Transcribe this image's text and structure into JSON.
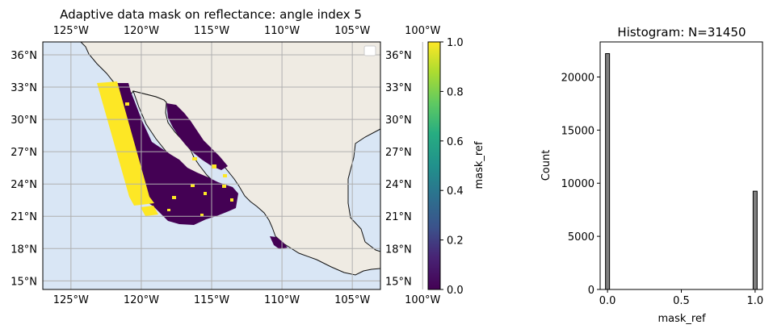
{
  "chart_data": [
    {
      "type": "heatmap",
      "title": "Adaptive data mask on reflectance: angle index 5",
      "projection": "PlateCarree map",
      "xlim": [
        -127,
        -103
      ],
      "ylim": [
        14.2,
        37.2
      ],
      "x_ticks": [
        -125,
        -120,
        -115,
        -110,
        -105,
        -100
      ],
      "x_tick_labels": [
        "125°W",
        "120°W",
        "115°W",
        "110°W",
        "105°W",
        "100°W"
      ],
      "y_ticks": [
        15,
        18,
        21,
        24,
        27,
        30,
        33,
        36
      ],
      "y_tick_labels": [
        "15°N",
        "18°N",
        "21°N",
        "24°N",
        "27°N",
        "30°N",
        "33°N",
        "36°N"
      ],
      "grid": true,
      "legend": "top-right (empty)",
      "colors": {
        "ocean": "#d9e6f5",
        "land": "#efebe3",
        "coast": "#111111",
        "mask_low": "#440154",
        "mask_high": "#fde725"
      },
      "colorbar": {
        "label": "mask_ref",
        "colormap": "viridis",
        "vmin": 0.0,
        "vmax": 1.0,
        "ticks": [
          0.0,
          0.2,
          0.4,
          0.6,
          0.8,
          1.0
        ],
        "tick_labels": [
          "0.0",
          "0.2",
          "0.4",
          "0.6",
          "0.8",
          "1.0"
        ]
      },
      "mask_values": [
        0,
        1
      ]
    },
    {
      "type": "bar",
      "title": "Histogram: N=31450",
      "xlabel": "mask_ref",
      "ylabel": "Count",
      "xlim": [
        -0.05,
        1.05
      ],
      "ylim": [
        0,
        23300
      ],
      "x_ticks": [
        0.0,
        0.5,
        1.0
      ],
      "x_tick_labels": [
        "0.0",
        "0.5",
        "1.0"
      ],
      "y_ticks": [
        0,
        5000,
        10000,
        15000,
        20000
      ],
      "y_tick_labels": [
        "0",
        "5000",
        "10000",
        "15000",
        "20000"
      ],
      "bins": [
        {
          "x": 0.0,
          "value": 22200
        },
        {
          "x": 1.0,
          "value": 9250
        }
      ],
      "bar_color": "#808080"
    }
  ]
}
